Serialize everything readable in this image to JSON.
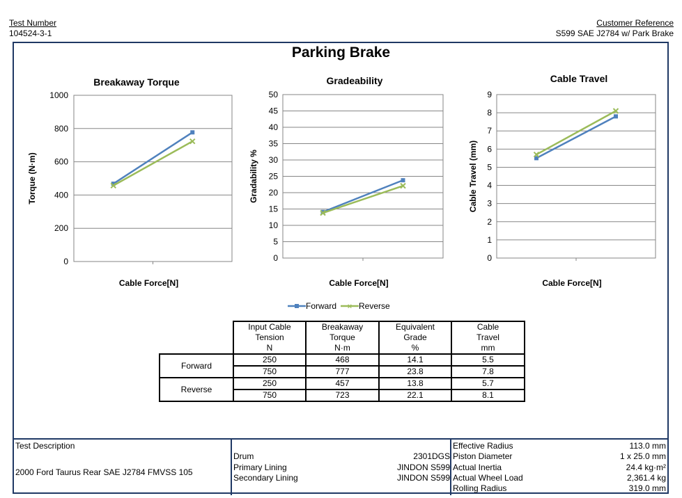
{
  "header": {
    "test_number_label": "Test Number",
    "test_number": "104524-3-1",
    "customer_reference_label": "Customer Reference",
    "customer_reference": "S599 SAE J2784 w/ Park Brake"
  },
  "page_title": "Parking Brake",
  "colors": {
    "forward": "#4f81bd",
    "reverse": "#9bbb59",
    "frame": "#1f3864"
  },
  "chart_data": [
    {
      "type": "line",
      "title": "Breakaway Torque",
      "xlabel": "Cable Force[N]",
      "ylabel": "Torque (N·m)",
      "ylim": [
        0,
        1000
      ],
      "yticks": [
        "0",
        "200",
        "400",
        "600",
        "800",
        "1000"
      ],
      "grid": true,
      "series": [
        {
          "name": "Forward",
          "x": [
            250,
            750
          ],
          "values": [
            468,
            777
          ]
        },
        {
          "name": "Reverse",
          "x": [
            250,
            750
          ],
          "values": [
            457,
            723
          ]
        }
      ]
    },
    {
      "type": "line",
      "title": "Gradeability",
      "xlabel": "Cable Force[N]",
      "ylabel": "Gradability %",
      "ylim": [
        0,
        50
      ],
      "yticks": [
        "0",
        "5",
        "10",
        "15",
        "20",
        "25",
        "30",
        "35",
        "40",
        "45",
        "50"
      ],
      "grid": true,
      "series": [
        {
          "name": "Forward",
          "x": [
            250,
            750
          ],
          "values": [
            14.1,
            23.8
          ]
        },
        {
          "name": "Reverse",
          "x": [
            250,
            750
          ],
          "values": [
            13.8,
            22.1
          ]
        }
      ]
    },
    {
      "type": "line",
      "title": "Cable Travel",
      "xlabel": "Cable Force[N]",
      "ylabel": "Cable Travel (mm)",
      "ylim": [
        0,
        9
      ],
      "yticks": [
        "0",
        "1",
        "2",
        "3",
        "4",
        "5",
        "6",
        "7",
        "8",
        "9"
      ],
      "grid": true,
      "series": [
        {
          "name": "Forward",
          "x": [
            250,
            750
          ],
          "values": [
            5.5,
            7.8
          ]
        },
        {
          "name": "Reverse",
          "x": [
            250,
            750
          ],
          "values": [
            5.7,
            8.1
          ]
        }
      ]
    }
  ],
  "legend": {
    "forward": "Forward",
    "reverse": "Reverse",
    "placement": "bottom-center"
  },
  "results_table": {
    "headers": [
      [
        "Input Cable",
        "Tension",
        "N"
      ],
      [
        "Breakaway",
        "Torque",
        "N·m"
      ],
      [
        "Equivalent",
        "Grade",
        "%"
      ],
      [
        "Cable",
        "Travel",
        "mm"
      ]
    ],
    "groups": [
      {
        "label": "Forward",
        "rows": [
          [
            "250",
            "468",
            "14.1",
            "5.5"
          ],
          [
            "750",
            "777",
            "23.8",
            "7.8"
          ]
        ]
      },
      {
        "label": "Reverse",
        "rows": [
          [
            "250",
            "457",
            "13.8",
            "5.7"
          ],
          [
            "750",
            "723",
            "22.1",
            "8.1"
          ]
        ]
      }
    ]
  },
  "footer": {
    "test_description_label": "Test Description",
    "test_description": "2000 Ford Taurus Rear SAE J2784 FMVSS 105",
    "drum_label": "Drum",
    "drum": "2301DGS",
    "primary_lining_label": "Primary Lining",
    "primary_lining": "JINDON S599",
    "secondary_lining_label": "Secondary Lining",
    "secondary_lining": "JINDON S599",
    "specs": [
      {
        "label": "Effective Radius",
        "value": "113.0 mm"
      },
      {
        "label": "Piston Diameter",
        "value": "1 x 25.0 mm"
      },
      {
        "label": "Actual Inertia",
        "value": "24.4 kg·m²"
      },
      {
        "label": "Actual Wheel Load",
        "value": "2,361.4 kg"
      },
      {
        "label": "Rolling Radius",
        "value": "319.0 mm"
      }
    ]
  }
}
